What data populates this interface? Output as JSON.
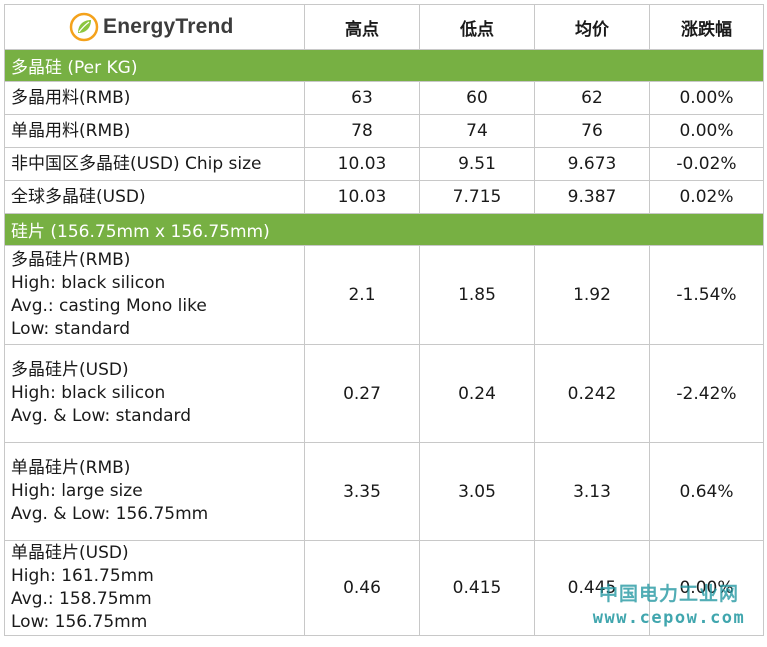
{
  "logo": {
    "text": "EnergyTrend",
    "icon": "leaf-circle-icon",
    "colors": {
      "leaf": "#8cc63f",
      "ring": "#f4a21c"
    }
  },
  "header": {
    "high": "高点",
    "low": "低点",
    "avg": "均价",
    "change": "涨跌幅"
  },
  "sections": [
    {
      "title": "多晶硅 (Per KG)",
      "rows": [
        {
          "label": [
            "多晶用料(RMB)"
          ],
          "high": "63",
          "low": "60",
          "avg": "62",
          "change": "0.00%"
        },
        {
          "label": [
            "单晶用料(RMB)"
          ],
          "high": "78",
          "low": "74",
          "avg": "76",
          "change": "0.00%"
        },
        {
          "label": [
            "非中国区多晶硅(USD) Chip size"
          ],
          "high": "10.03",
          "low": "9.51",
          "avg": "9.673",
          "change": "-0.02%"
        },
        {
          "label": [
            "全球多晶硅(USD)"
          ],
          "high": "10.03",
          "low": "7.715",
          "avg": "9.387",
          "change": "0.02%"
        }
      ]
    },
    {
      "title": "硅片 (156.75mm x 156.75mm)",
      "rows": [
        {
          "label": [
            "多晶硅片(RMB)",
            "High: black silicon",
            "Avg.: casting Mono like",
            "Low: standard"
          ],
          "high": "2.1",
          "low": "1.85",
          "avg": "1.92",
          "change": "-1.54%"
        },
        {
          "label": [
            "多晶硅片(USD)",
            "High: black silicon",
            "Avg. & Low: standard"
          ],
          "high": "0.27",
          "low": "0.24",
          "avg": "0.242",
          "change": "-2.42%"
        },
        {
          "label": [
            "单晶硅片(RMB)",
            "High: large size",
            "Avg. & Low: 156.75mm"
          ],
          "high": "3.35",
          "low": "3.05",
          "avg": "3.13",
          "change": "0.64%"
        },
        {
          "label": [
            "单晶硅片(USD)",
            "High: 161.75mm",
            "Avg.: 158.75mm",
            "Low: 156.75mm"
          ],
          "high": "0.46",
          "low": "0.415",
          "avg": "0.445",
          "change": "0.00%"
        }
      ]
    }
  ],
  "watermark": {
    "cn": "中国电力工业网",
    "url": "www.cepow.com"
  },
  "colors": {
    "section_bg": "#77b043",
    "watermark": "#2096a0"
  }
}
